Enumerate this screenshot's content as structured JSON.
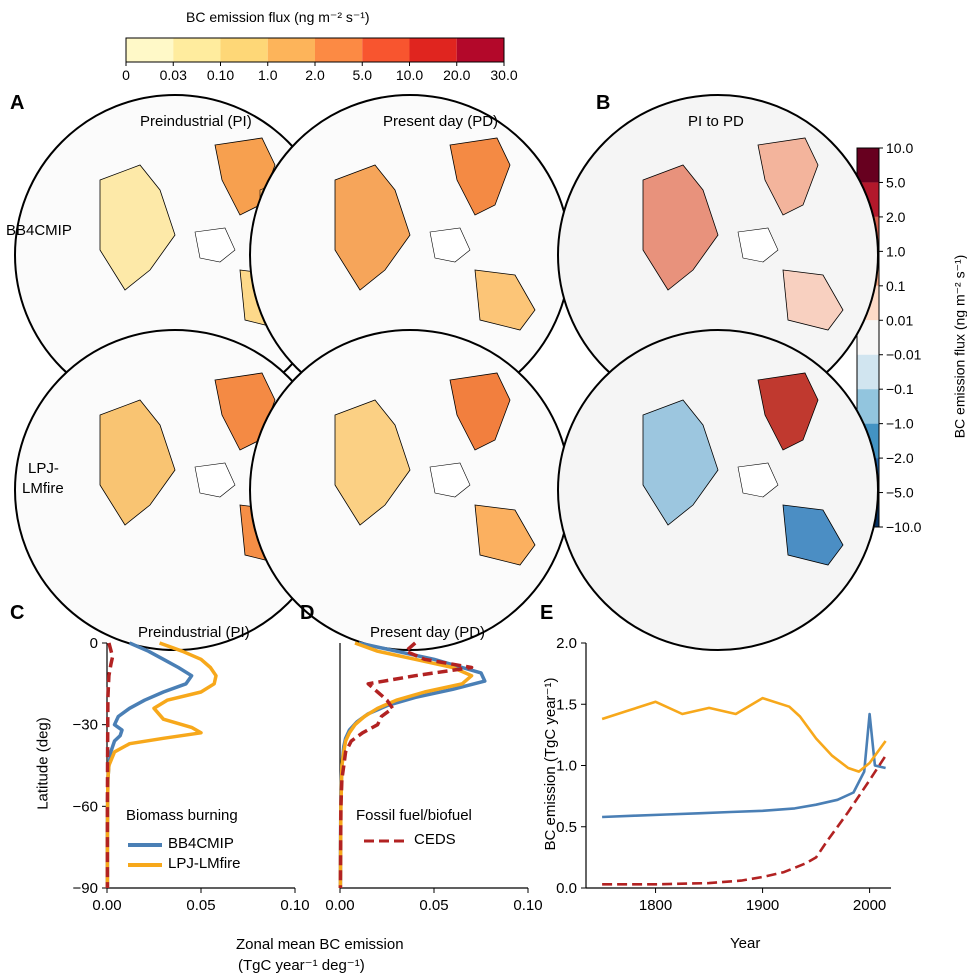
{
  "colorbar_top": {
    "title": "BC emission flux (ng m⁻² s⁻¹)",
    "ticks": [
      "0",
      "0.03",
      "0.10",
      "1.0",
      "2.0",
      "5.0",
      "10.0",
      "20.0",
      "30.0"
    ],
    "colors": [
      "#fff9c8",
      "#ffec9e",
      "#fed777",
      "#fdb45a",
      "#fc8a44",
      "#f8552f",
      "#e0251f",
      "#b3082a"
    ]
  },
  "colorbar_right": {
    "label": "BC emission flux (ng m⁻² s⁻¹)",
    "ticks": [
      "10.0",
      "5.0",
      "2.0",
      "1.0",
      "0.1",
      "0.01",
      "−0.01",
      "−0.1",
      "−1.0",
      "−2.0",
      "−5.0",
      "−10.0"
    ],
    "colors": [
      "#67001f",
      "#b2182b",
      "#d6604d",
      "#f4a582",
      "#fddbc7",
      "#f7f7f7",
      "#d1e5f0",
      "#92c5de",
      "#4393c3",
      "#2166ac",
      "#053061"
    ]
  },
  "panels": {
    "A": {
      "letter": "A",
      "title_pi": "Preindustrial (PI)",
      "title_pd": "Present day (PD)",
      "row1": "BB4CMIP",
      "row2_line1": "LPJ-",
      "row2_line2": "LMfire"
    },
    "B": {
      "letter": "B",
      "title": "PI to PD"
    },
    "C": {
      "letter": "C",
      "title": "Preindustrial (PI)",
      "legend_title": "Biomass burning",
      "legend_items": [
        "BB4CMIP",
        "LPJ-LMfire"
      ]
    },
    "D": {
      "letter": "D",
      "title": "Present day (PD)",
      "legend_title": "Fossil fuel/biofuel",
      "legend_items": [
        "CEDS"
      ]
    },
    "E": {
      "letter": "E"
    }
  },
  "shared_xlabel_line1": "Zonal mean BC emission",
  "shared_xlabel_line2": "(TgC year⁻¹ deg⁻¹)",
  "chart_data": [
    {
      "type": "line",
      "panel": "C",
      "title": "Preindustrial (PI)",
      "ylabel": "Latitude (deg)",
      "xlim": [
        0,
        0.1
      ],
      "ylim": [
        -90,
        0
      ],
      "xticks": [
        "0.00",
        "0.05",
        "0.10"
      ],
      "yticks": [
        "0",
        "−30",
        "−60",
        "−90"
      ],
      "series": [
        {
          "name": "BB4CMIP",
          "color": "#4a7fb5",
          "x": [
            0.012,
            0.022,
            0.03,
            0.038,
            0.045,
            0.042,
            0.03,
            0.02,
            0.012,
            0.006,
            0.004,
            0.008,
            0.007,
            0.004,
            0.002,
            0.001,
            0.0005,
            0.0003,
            0.0002,
            0.0002,
            0.0002
          ],
          "y": [
            0,
            -3,
            -6,
            -9,
            -12,
            -15,
            -18,
            -21,
            -24,
            -27,
            -30,
            -32,
            -34,
            -36,
            -40,
            -45,
            -50,
            -60,
            -70,
            -80,
            -90
          ]
        },
        {
          "name": "LPJ-LMfire",
          "color": "#f7a81b",
          "x": [
            0.028,
            0.04,
            0.05,
            0.055,
            0.058,
            0.057,
            0.05,
            0.032,
            0.025,
            0.03,
            0.045,
            0.05,
            0.03,
            0.012,
            0.004,
            0.001,
            0.0005,
            0.0003,
            0.0002,
            0.0002
          ],
          "y": [
            0,
            -3,
            -6,
            -9,
            -12,
            -15,
            -18,
            -21,
            -24,
            -28,
            -31,
            -33,
            -35,
            -37,
            -40,
            -45,
            -50,
            -60,
            -75,
            -90
          ]
        },
        {
          "name": "CEDS",
          "color": "#b22222",
          "dashed": true,
          "x": [
            0.001,
            0.003,
            0.002,
            0.001,
            0.0005,
            0.0003,
            0.0002,
            0.0002
          ],
          "y": [
            0,
            -5,
            -8,
            -12,
            -20,
            -40,
            -60,
            -90
          ]
        }
      ]
    },
    {
      "type": "line",
      "panel": "D",
      "title": "Present day (PD)",
      "xlim": [
        0,
        0.1
      ],
      "ylim": [
        -90,
        0
      ],
      "xticks": [
        "0.00",
        "0.05",
        "0.10"
      ],
      "series": [
        {
          "name": "BB4CMIP",
          "color": "#4a7fb5",
          "x": [
            0.01,
            0.03,
            0.05,
            0.065,
            0.075,
            0.077,
            0.06,
            0.04,
            0.025,
            0.015,
            0.009,
            0.005,
            0.003,
            0.002,
            0.001,
            0.0005,
            0.0003,
            0.0002
          ],
          "y": [
            0,
            -3,
            -6,
            -9,
            -11,
            -14,
            -17,
            -20,
            -23,
            -26,
            -29,
            -32,
            -35,
            -38,
            -45,
            -55,
            -70,
            -90
          ]
        },
        {
          "name": "LPJ-LMfire",
          "color": "#f7a81b",
          "x": [
            0.008,
            0.02,
            0.04,
            0.06,
            0.07,
            0.065,
            0.045,
            0.03,
            0.02,
            0.013,
            0.008,
            0.005,
            0.003,
            0.002,
            0.001,
            0.0005,
            0.0002
          ],
          "y": [
            0,
            -3,
            -6,
            -9,
            -12,
            -15,
            -18,
            -21,
            -24,
            -27,
            -30,
            -33,
            -36,
            -40,
            -45,
            -60,
            -90
          ]
        },
        {
          "name": "CEDS",
          "color": "#b22222",
          "dashed": true,
          "x": [
            0.04,
            0.035,
            0.045,
            0.07,
            0.04,
            0.015,
            0.02,
            0.025,
            0.028,
            0.022,
            0.02,
            0.012,
            0.006,
            0.003,
            0.002,
            0.001,
            0.0005,
            0.0002
          ],
          "y": [
            0,
            -3,
            -6,
            -9,
            -12,
            -15,
            -18,
            -21,
            -24,
            -27,
            -30,
            -33,
            -36,
            -40,
            -45,
            -50,
            -60,
            -90
          ]
        }
      ]
    },
    {
      "type": "line",
      "panel": "E",
      "ylabel": "BC emission (TgC year⁻¹)",
      "xlabel": "Year",
      "xlim": [
        1735,
        2020
      ],
      "ylim": [
        0,
        2.0
      ],
      "xticks": [
        "1800",
        "1900",
        "2000"
      ],
      "yticks": [
        "0.0",
        "0.5",
        "1.0",
        "1.5",
        "2.0"
      ],
      "series": [
        {
          "name": "BB4CMIP",
          "color": "#4a7fb5",
          "x": [
            1750,
            1780,
            1810,
            1840,
            1870,
            1900,
            1930,
            1950,
            1970,
            1985,
            1995,
            2000,
            2005,
            2015
          ],
          "y": [
            0.58,
            0.59,
            0.6,
            0.61,
            0.62,
            0.63,
            0.65,
            0.68,
            0.72,
            0.78,
            0.95,
            1.42,
            1.0,
            0.98
          ]
        },
        {
          "name": "LPJ-LMfire",
          "color": "#f7a81b",
          "x": [
            1750,
            1775,
            1800,
            1825,
            1850,
            1875,
            1900,
            1925,
            1935,
            1950,
            1965,
            1980,
            1990,
            2000,
            2015
          ],
          "y": [
            1.38,
            1.45,
            1.52,
            1.42,
            1.47,
            1.42,
            1.55,
            1.48,
            1.4,
            1.22,
            1.08,
            0.98,
            0.95,
            1.02,
            1.2
          ]
        },
        {
          "name": "CEDS",
          "color": "#b22222",
          "dashed": true,
          "x": [
            1750,
            1800,
            1850,
            1880,
            1900,
            1920,
            1940,
            1950,
            1960,
            1970,
            1980,
            1990,
            2000,
            2015
          ],
          "y": [
            0.03,
            0.03,
            0.04,
            0.06,
            0.09,
            0.13,
            0.2,
            0.25,
            0.38,
            0.5,
            0.62,
            0.75,
            0.88,
            1.08
          ]
        }
      ]
    }
  ]
}
